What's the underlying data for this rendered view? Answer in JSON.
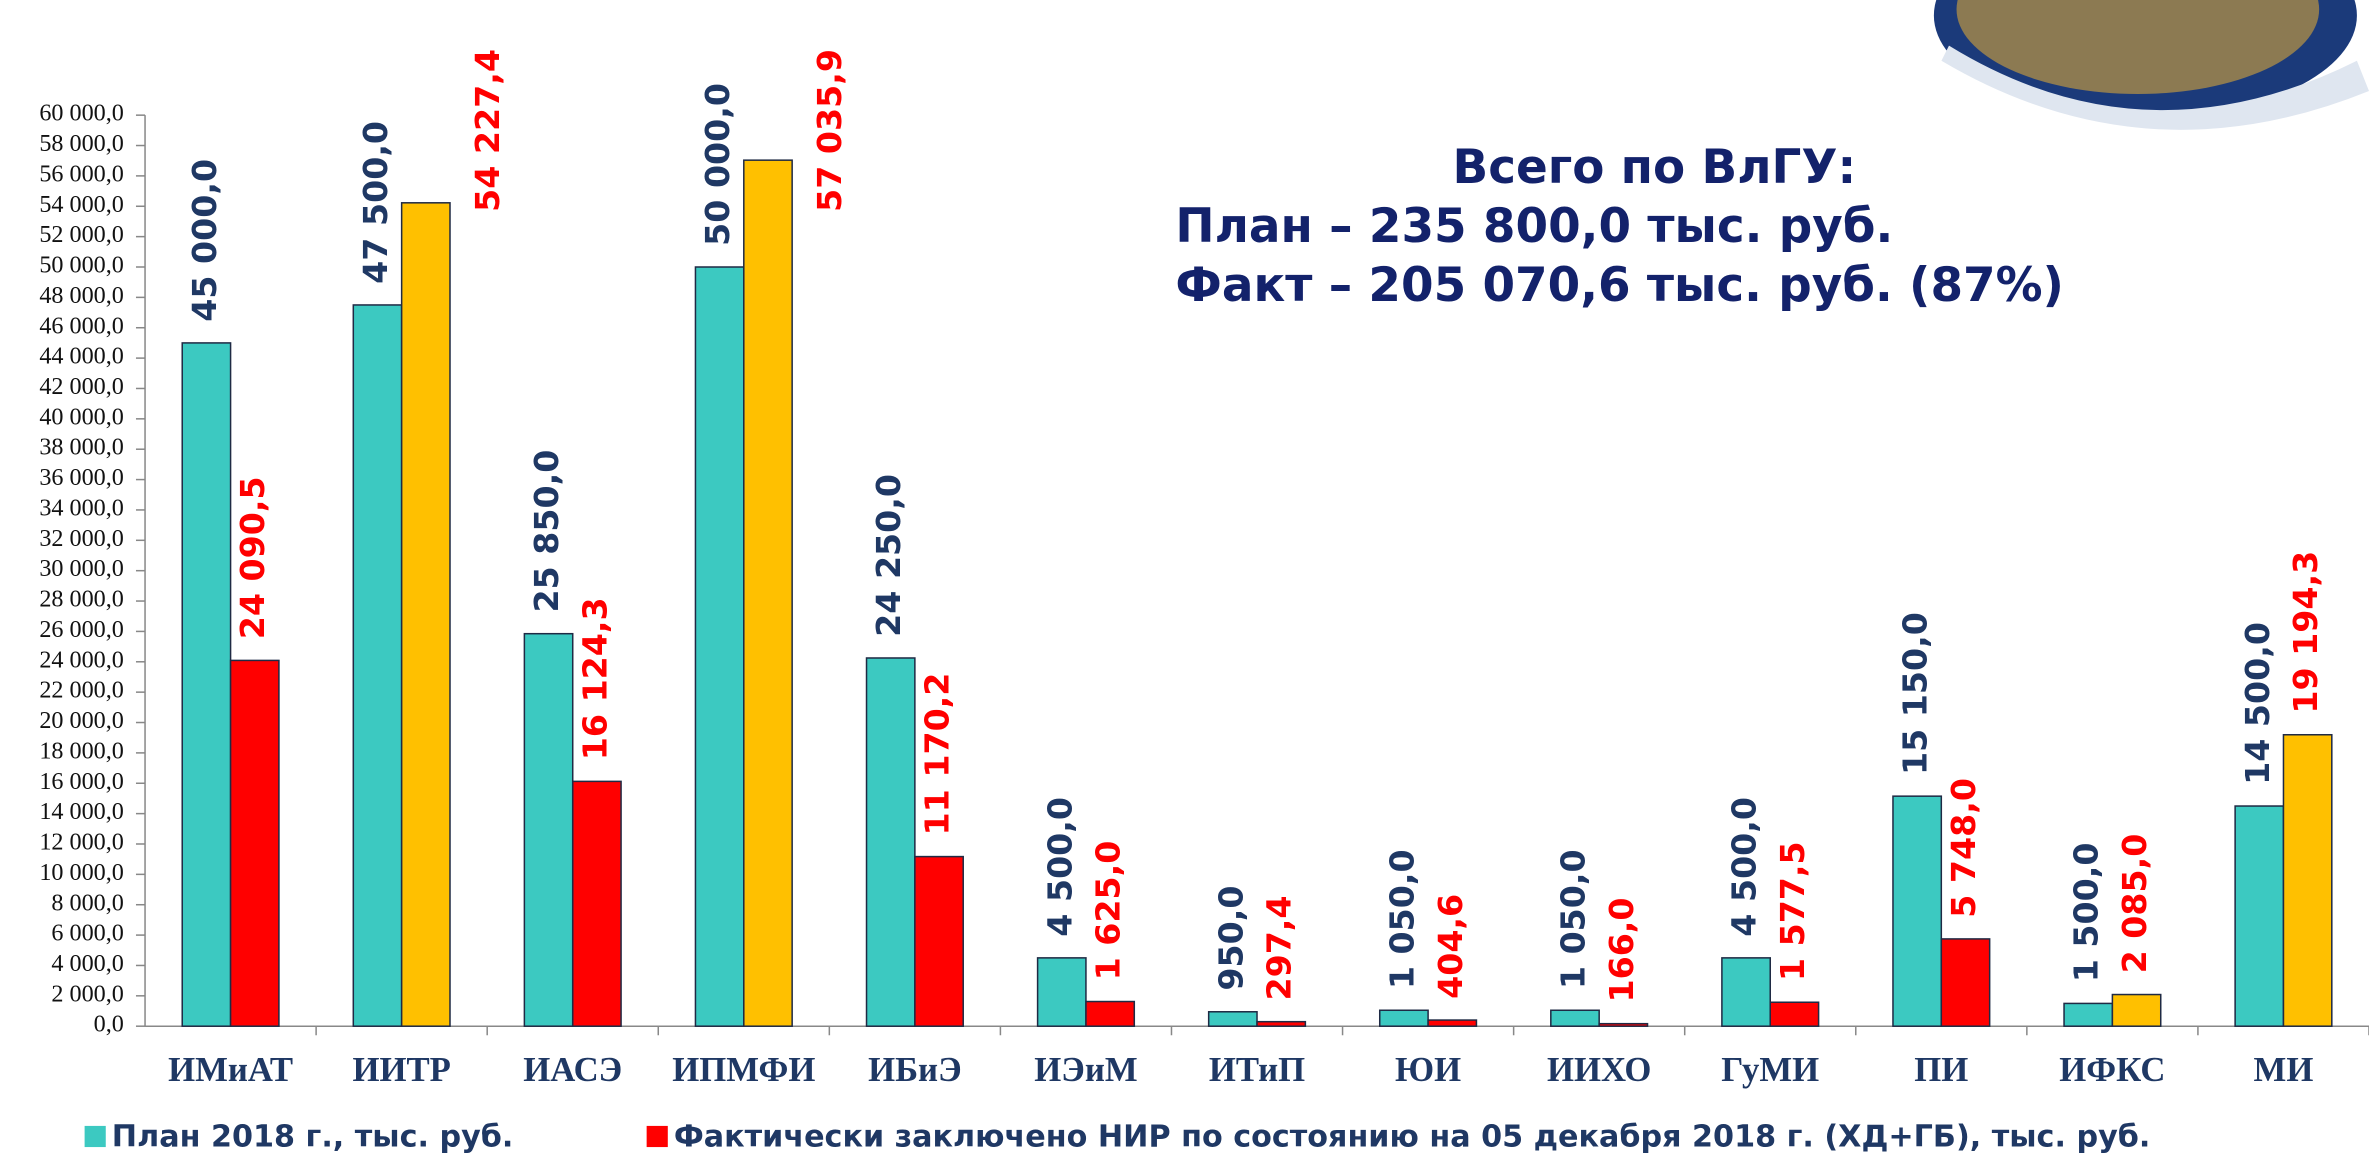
{
  "chart_data": {
    "type": "bar",
    "annotations": [
      "Всего по ВлГУ:",
      "План – 235 800,0 тыс. руб.",
      "Факт – 205 070,6 тыс. руб. (87%)"
    ],
    "categories": [
      "ИМиАТ",
      "ИИТР",
      "ИАСЭ",
      "ИПМФИ",
      "ИБиЭ",
      "ИЭиМ",
      "ИТиП",
      "ЮИ",
      "ИИХО",
      "ГуМИ",
      "ПИ",
      "ИФКС",
      "МИ"
    ],
    "series": [
      {
        "name": "План 2018 г., тыс. руб.",
        "color": "#3cc9c1",
        "values": [
          45000,
          47500,
          25850,
          50000,
          24250,
          4500,
          950,
          1050,
          1050,
          4500,
          15150,
          1500,
          14500
        ],
        "value_labels": [
          "45 000,0",
          "47 500,0",
          "25 850,0",
          "50 000,0",
          "24 250,0",
          "4 500,0",
          "950,0",
          "1 050,0",
          "1 050,0",
          "4 500,0",
          "15 150,0",
          "1 500,0",
          "14 500,0"
        ],
        "label_color": "#1f3864"
      },
      {
        "name": "Фактически заключено НИР по состоянию на 05 декабря 2018 г. (ХД+ГБ), тыс. руб.",
        "color": "#ff0000",
        "colors": [
          "#ff0000",
          "#ffc000",
          "#ff0000",
          "#ffc000",
          "#ff0000",
          "#ff0000",
          "#ff0000",
          "#ff0000",
          "#ff0000",
          "#ff0000",
          "#ff0000",
          "#ffc000",
          "#ffc000"
        ],
        "values": [
          24090.5,
          54227.4,
          16124.3,
          57035.9,
          11170.2,
          1625,
          297.4,
          404.6,
          166,
          1577.5,
          5748,
          2085,
          19194.3
        ],
        "value_labels": [
          "24 090,5",
          "54 227,4",
          "16 124,3",
          "57 035,9",
          "11 170,2",
          "1 625,0",
          "297,4",
          "404,6",
          "166,0",
          "1 577,5",
          "5 748,0",
          "2 085,0",
          "19 194,3"
        ],
        "label_color": "#ff0000"
      }
    ],
    "ylim": [
      0,
      60000
    ],
    "yticks": [
      {
        "value": 0,
        "label": "0,0"
      },
      {
        "value": 2000,
        "label": "2 000,0"
      },
      {
        "value": 4000,
        "label": "4 000,0"
      },
      {
        "value": 6000,
        "label": "6 000,0"
      },
      {
        "value": 8000,
        "label": "8 000,0"
      },
      {
        "value": 10000,
        "label": "10 000,0"
      },
      {
        "value": 12000,
        "label": "12 000,0"
      },
      {
        "value": 14000,
        "label": "14 000,0"
      },
      {
        "value": 16000,
        "label": "16 000,0"
      },
      {
        "value": 18000,
        "label": "18 000,0"
      },
      {
        "value": 20000,
        "label": "20 000,0"
      },
      {
        "value": 22000,
        "label": "22 000,0"
      },
      {
        "value": 24000,
        "label": "24 000,0"
      },
      {
        "value": 26000,
        "label": "26 000,0"
      },
      {
        "value": 28000,
        "label": "28 000,0"
      },
      {
        "value": 30000,
        "label": "30 000,0"
      },
      {
        "value": 32000,
        "label": "32 000,0"
      },
      {
        "value": 34000,
        "label": "34 000,0"
      },
      {
        "value": 36000,
        "label": "36 000,0"
      },
      {
        "value": 38000,
        "label": "38 000,0"
      },
      {
        "value": 40000,
        "label": "40 000,0"
      },
      {
        "value": 42000,
        "label": "42 000,0"
      },
      {
        "value": 44000,
        "label": "44 000,0"
      },
      {
        "value": 46000,
        "label": "46 000,0"
      },
      {
        "value": 48000,
        "label": "48 000,0"
      },
      {
        "value": 50000,
        "label": "50 000,0"
      },
      {
        "value": 52000,
        "label": "52 000,0"
      },
      {
        "value": 54000,
        "label": "54 000,0"
      },
      {
        "value": 56000,
        "label": "56 000,0"
      },
      {
        "value": 58000,
        "label": "58 000,0"
      },
      {
        "value": 60000,
        "label": "60 000,0"
      }
    ],
    "grid": false
  }
}
